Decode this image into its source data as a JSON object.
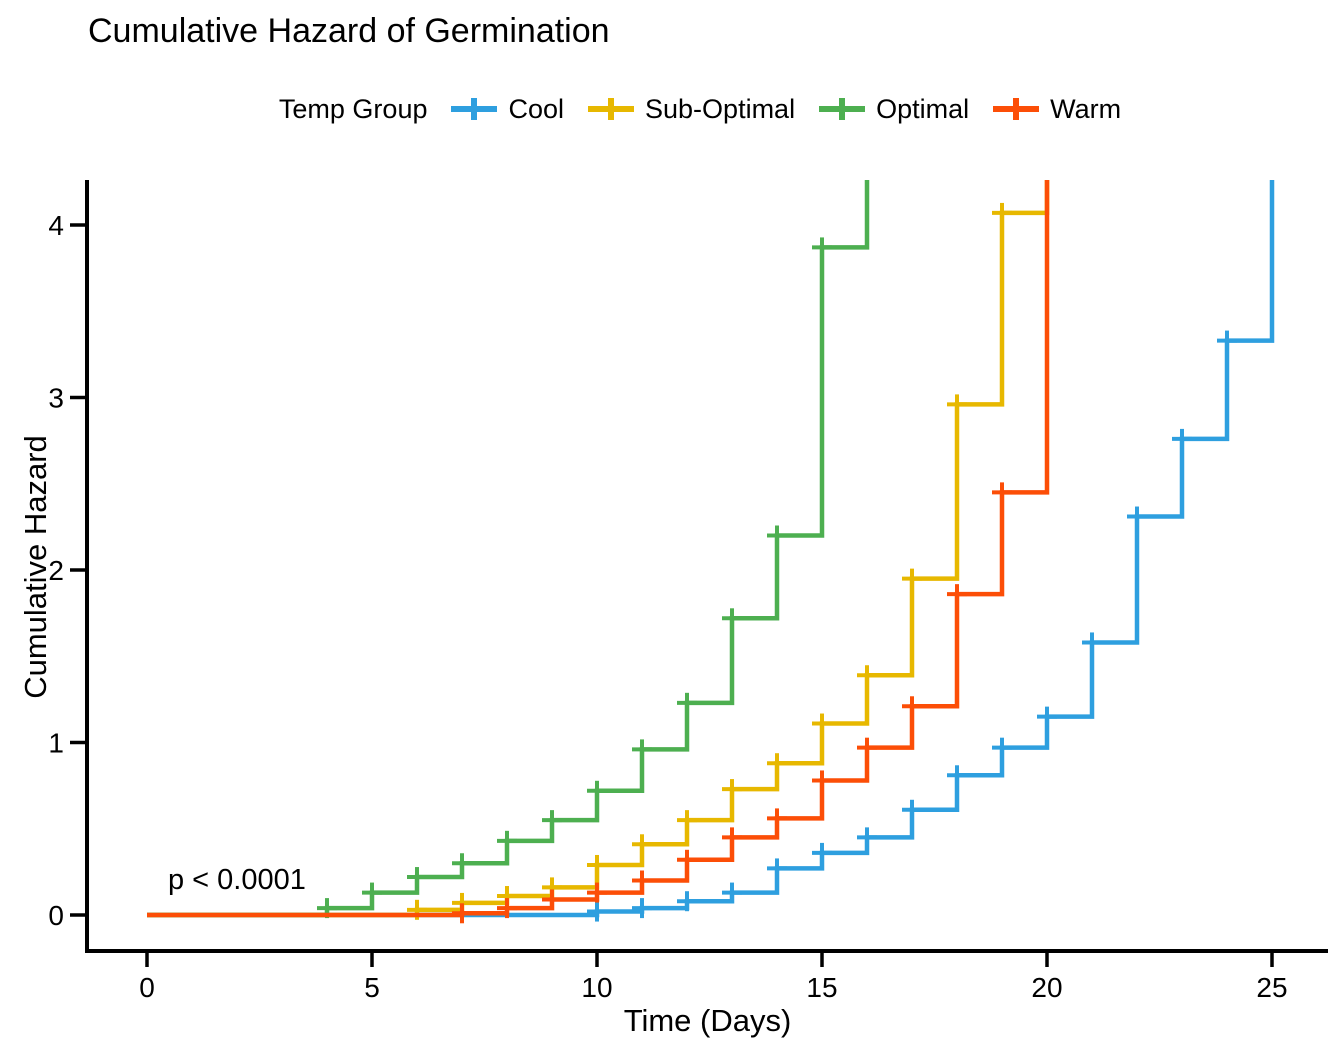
{
  "title": "Cumulative Hazard of Germination",
  "legend": {
    "title": "Temp Group",
    "entries": [
      {
        "label": "Cool",
        "color": "#2E9FDF"
      },
      {
        "label": "Sub-Optimal",
        "color": "#E7B800"
      },
      {
        "label": "Optimal",
        "color": "#4DAF50"
      },
      {
        "label": "Warm",
        "color": "#FC4E07"
      }
    ]
  },
  "annotation": {
    "text": "p < 0.0001"
  },
  "chart_data": {
    "type": "line",
    "subtype": "step-function-cumulative-hazard",
    "title": "Cumulative Hazard of Germination",
    "xlabel": "Time (Days)",
    "ylabel": "Cumulative Hazard",
    "xticks": [
      0,
      5,
      10,
      15,
      20,
      25
    ],
    "yticks": [
      0,
      1,
      2,
      3,
      4
    ],
    "xlim": [
      -1.3,
      26.2
    ],
    "ylim": [
      -0.21,
      4.26
    ],
    "grid": false,
    "legend_position": "top",
    "pvalue_annotation": "p < 0.0001",
    "marker": "plus-at-each-step",
    "series": [
      {
        "name": "Cool",
        "color": "#2E9FDF",
        "clipped_at_top": true,
        "points": [
          [
            0,
            0
          ],
          [
            10,
            0.02
          ],
          [
            11,
            0.04
          ],
          [
            12,
            0.08
          ],
          [
            13,
            0.13
          ],
          [
            14,
            0.27
          ],
          [
            15,
            0.36
          ],
          [
            16,
            0.45
          ],
          [
            17,
            0.61
          ],
          [
            18,
            0.81
          ],
          [
            19,
            0.97
          ],
          [
            20,
            1.15
          ],
          [
            21,
            1.58
          ],
          [
            22,
            2.31
          ],
          [
            23,
            2.76
          ],
          [
            24,
            3.33
          ],
          [
            25,
            4.45
          ]
        ]
      },
      {
        "name": "Sub-Optimal",
        "color": "#E7B800",
        "clipped_at_top": true,
        "points": [
          [
            0,
            0
          ],
          [
            6,
            0.03
          ],
          [
            7,
            0.07
          ],
          [
            8,
            0.11
          ],
          [
            9,
            0.16
          ],
          [
            10,
            0.29
          ],
          [
            11,
            0.41
          ],
          [
            12,
            0.55
          ],
          [
            13,
            0.73
          ],
          [
            14,
            0.88
          ],
          [
            15,
            1.11
          ],
          [
            16,
            1.39
          ],
          [
            17,
            1.95
          ],
          [
            18,
            2.96
          ],
          [
            19,
            4.07
          ],
          [
            20,
            4.45
          ]
        ]
      },
      {
        "name": "Optimal",
        "color": "#4DAF50",
        "clipped_at_top": true,
        "points": [
          [
            0,
            0
          ],
          [
            4,
            0.04
          ],
          [
            5,
            0.13
          ],
          [
            6,
            0.22
          ],
          [
            7,
            0.3
          ],
          [
            8,
            0.43
          ],
          [
            9,
            0.55
          ],
          [
            10,
            0.72
          ],
          [
            11,
            0.96
          ],
          [
            12,
            1.23
          ],
          [
            13,
            1.72
          ],
          [
            14,
            2.2
          ],
          [
            15,
            3.87
          ],
          [
            16,
            4.45
          ]
        ]
      },
      {
        "name": "Warm",
        "color": "#FC4E07",
        "clipped_at_top": true,
        "points": [
          [
            0,
            0
          ],
          [
            7,
            0.01
          ],
          [
            8,
            0.04
          ],
          [
            9,
            0.09
          ],
          [
            10,
            0.13
          ],
          [
            11,
            0.2
          ],
          [
            12,
            0.32
          ],
          [
            13,
            0.45
          ],
          [
            14,
            0.56
          ],
          [
            15,
            0.78
          ],
          [
            16,
            0.97
          ],
          [
            17,
            1.21
          ],
          [
            18,
            1.86
          ],
          [
            19,
            2.45
          ],
          [
            20,
            4.45
          ]
        ]
      }
    ]
  }
}
